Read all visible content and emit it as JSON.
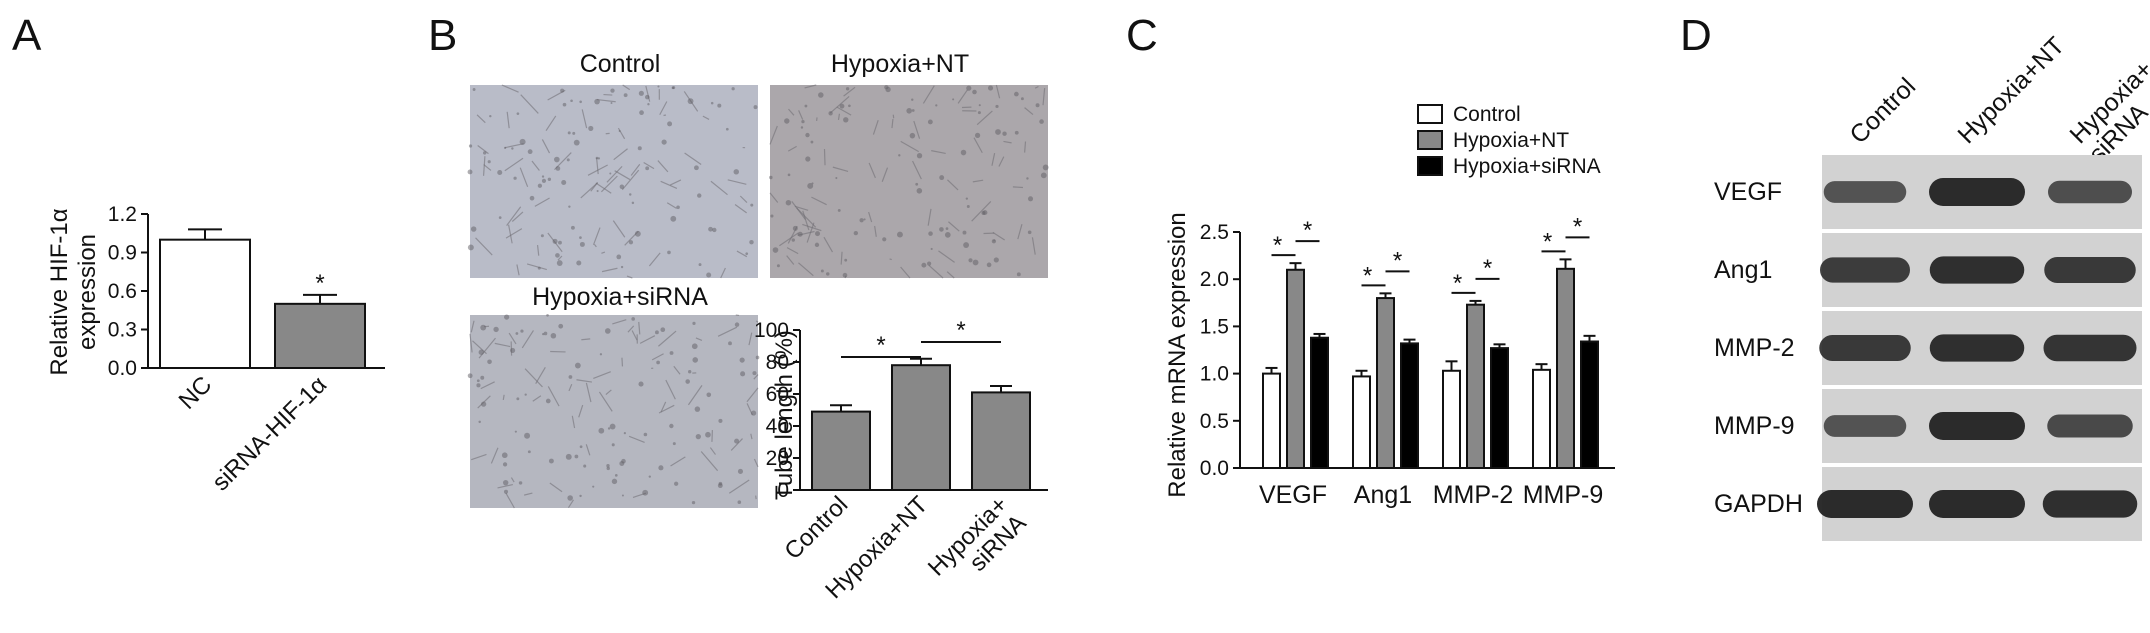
{
  "panels": [
    {
      "letter": "A"
    },
    {
      "letter": "B"
    },
    {
      "letter": "C"
    },
    {
      "letter": "D"
    }
  ],
  "micrographs": [
    {
      "title": "Control",
      "tone": "#b9bcc8"
    },
    {
      "title": "Hypoxia+NT",
      "tone": "#aba7ab"
    },
    {
      "title": "Hypoxia+siRNA",
      "tone": "#b5b7c0"
    }
  ],
  "western_blot": {
    "columns": [
      "Control",
      "Hypoxia+NT",
      "Hypoxia+ siRNA"
    ],
    "rows": [
      {
        "label": "VEGF",
        "intensity": [
          0.55,
          1.0,
          0.6
        ]
      },
      {
        "label": "Ang1",
        "intensity": [
          0.8,
          0.95,
          0.85
        ]
      },
      {
        "label": "MMP-2",
        "intensity": [
          0.85,
          0.95,
          0.9
        ]
      },
      {
        "label": "MMP-9",
        "intensity": [
          0.55,
          1.0,
          0.65
        ]
      },
      {
        "label": "GAPDH",
        "intensity": [
          1.0,
          1.0,
          0.95
        ]
      }
    ]
  },
  "chart_data": [
    {
      "type": "bar",
      "id": "A",
      "categories": [
        "NC",
        "siRNA-HIF-1α"
      ],
      "values": [
        1.0,
        0.5
      ],
      "errors": [
        0.08,
        0.07
      ],
      "ylabel": "Relative HIF-1α expression",
      "ylabel_lines": [
        "Relative HIF-1α",
        "expression"
      ],
      "yticks": [
        "0.0",
        "0.3",
        "0.6",
        "0.9",
        "1.2"
      ],
      "ylim": [
        0,
        1.2
      ],
      "colors": [
        "#ffffff",
        "#888888"
      ],
      "significance": [
        "",
        "*"
      ]
    },
    {
      "type": "bar",
      "id": "B",
      "categories": [
        "Control",
        "Hypoxia+NT",
        "Hypoxia+ siRNA"
      ],
      "values": [
        49,
        78,
        61
      ],
      "errors": [
        4,
        4,
        4
      ],
      "ylabel": "Tube length (%)",
      "yticks": [
        "0",
        "20",
        "40",
        "60",
        "80",
        "100"
      ],
      "ylim": [
        0,
        100
      ],
      "colors": [
        "#888888",
        "#888888",
        "#888888"
      ],
      "comparisons": [
        {
          "from": 0,
          "to": 1,
          "label": "*"
        },
        {
          "from": 1,
          "to": 2,
          "label": "*"
        }
      ]
    },
    {
      "type": "bar",
      "id": "C",
      "categories": [
        "VEGF",
        "Ang1",
        "MMP-2",
        "MMP-9"
      ],
      "series": [
        {
          "name": "Control",
          "color": "#ffffff",
          "values": [
            1.0,
            0.97,
            1.03,
            1.04
          ],
          "errors": [
            0.06,
            0.06,
            0.1,
            0.06
          ]
        },
        {
          "name": "Hypoxia+NT",
          "color": "#888888",
          "values": [
            2.1,
            1.8,
            1.73,
            2.11
          ],
          "errors": [
            0.07,
            0.05,
            0.04,
            0.1
          ]
        },
        {
          "name": "Hypoxia+siRNA",
          "color": "#000000",
          "values": [
            1.38,
            1.32,
            1.27,
            1.34
          ],
          "errors": [
            0.04,
            0.04,
            0.04,
            0.06
          ]
        }
      ],
      "ylabel": "Relative mRNA expression",
      "yticks": [
        "0.0",
        "0.5",
        "1.0",
        "1.5",
        "2.0",
        "2.5"
      ],
      "ylim": [
        0,
        2.5
      ],
      "legend_position": "top",
      "star": "*"
    }
  ]
}
